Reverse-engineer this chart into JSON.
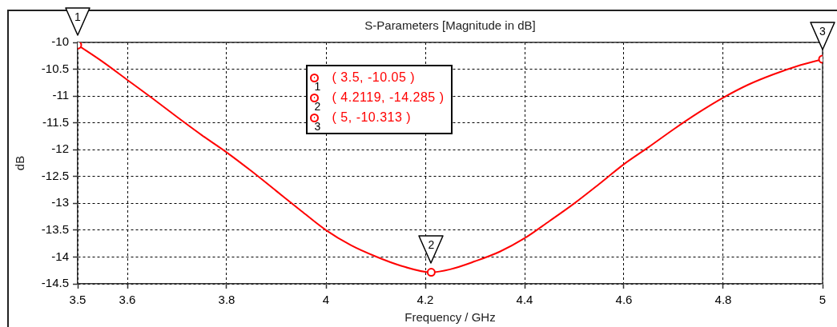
{
  "chart_data": {
    "type": "line",
    "title": "S-Parameters [Magnitude in dB]",
    "xlabel": "Frequency / GHz",
    "ylabel": "dB",
    "series": [
      {
        "type": "line",
        "color": "#ff0000",
        "marker": "none",
        "x": [
          3.5,
          3.55,
          3.6,
          3.65,
          3.7,
          3.75,
          3.8,
          3.85,
          3.9,
          3.95,
          4.0,
          4.05,
          4.1,
          4.15,
          4.2119,
          4.25,
          4.3,
          4.35,
          4.4,
          4.45,
          4.5,
          4.55,
          4.6,
          4.65,
          4.7,
          4.75,
          4.8,
          4.85,
          4.9,
          4.95,
          5.0
        ],
        "values": [
          -10.05,
          -10.36,
          -10.7,
          -11.04,
          -11.39,
          -11.73,
          -12.05,
          -12.4,
          -12.77,
          -13.14,
          -13.5,
          -13.78,
          -13.99,
          -14.16,
          -14.285,
          -14.23,
          -14.08,
          -13.9,
          -13.65,
          -13.33,
          -13.0,
          -12.64,
          -12.27,
          -11.95,
          -11.62,
          -11.31,
          -11.03,
          -10.79,
          -10.6,
          -10.44,
          -10.313
        ]
      },
      {
        "type": "scatter",
        "color": "#ff0000",
        "marker": "circle",
        "x": [
          3.5,
          4.2119,
          5
        ],
        "values": [
          -10.05,
          -14.285,
          -10.313
        ]
      }
    ],
    "xlim": [
      3.5,
      5
    ],
    "ylim": [
      -14.5,
      -10
    ],
    "xticks": [
      3.5,
      3.6,
      3.8,
      4,
      4.2,
      4.4,
      4.6,
      4.8,
      5
    ],
    "yticks": [
      -14.5,
      -14,
      -13.5,
      -13,
      -12.5,
      -12,
      -11.5,
      -11,
      -10.5,
      -10
    ],
    "grid": true,
    "line_style": "solid",
    "annotations": [
      {
        "text": "1",
        "x": 3.5,
        "y": -10.05
      },
      {
        "text": "2",
        "x": 4.2119,
        "y": -14.285
      },
      {
        "text": "3",
        "x": 5,
        "y": -10.313
      },
      "( 3.5, -10.05 )",
      "( 4.2119, -14.285 )",
      "( 5, -10.313 )"
    ]
  }
}
